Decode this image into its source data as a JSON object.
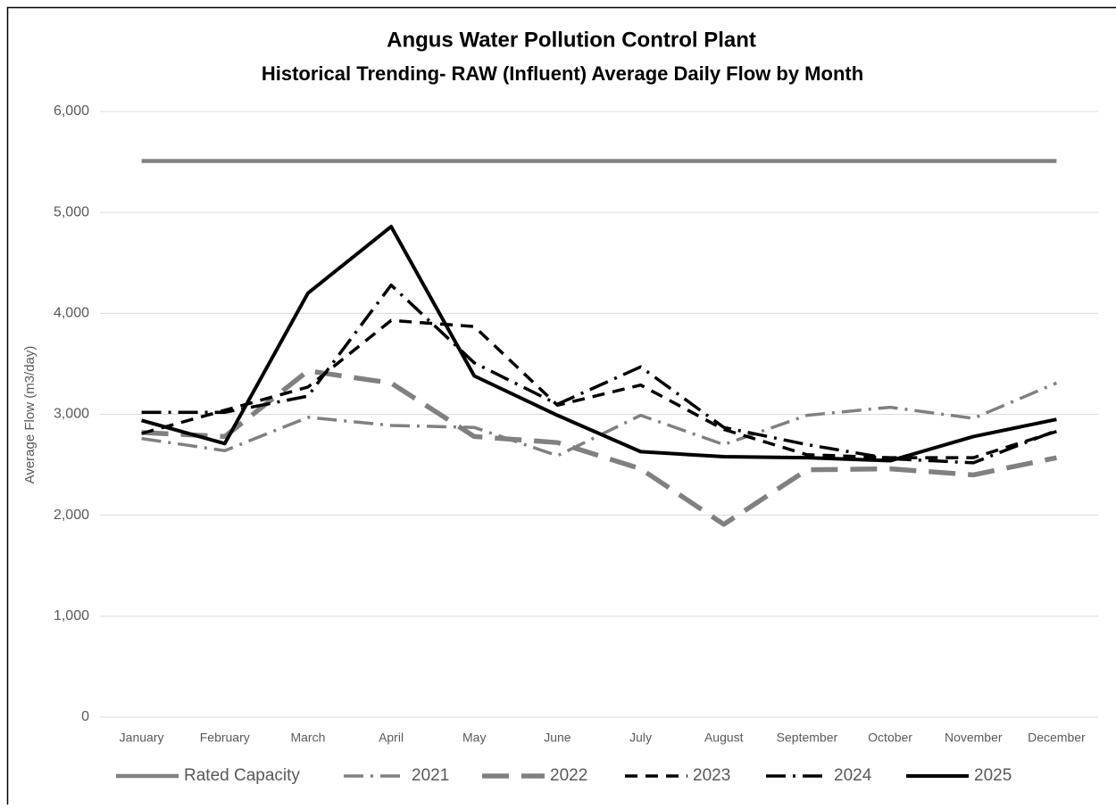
{
  "chart_data": {
    "type": "line",
    "title": "Angus Water Pollution Control Plant",
    "subtitle": "Historical Trending- RAW (Influent) Average Daily Flow by Month",
    "y_label": "Average Flow (m3/day)",
    "categories": [
      "January",
      "February",
      "March",
      "April",
      "May",
      "June",
      "July",
      "August",
      "September",
      "October",
      "November",
      "December"
    ],
    "ylim": [
      0,
      6000
    ],
    "yticks": [
      0,
      {
        "value": 1000,
        "label": "1,000"
      },
      {
        "value": 2000,
        "label": "2,000"
      },
      {
        "value": 3000,
        "label": "3,000"
      },
      {
        "value": 4000,
        "label": "4,000"
      },
      {
        "value": 5000,
        "label": "5,000"
      },
      {
        "value": 6000,
        "label": "6,000"
      }
    ],
    "grid": true,
    "legend": "bottom",
    "series": [
      {
        "name": "Rated Capacity",
        "color": "#808080",
        "style": "solid",
        "values": [
          5510,
          5510,
          5510,
          5510,
          5510,
          5510,
          5510,
          5510,
          5510,
          5510,
          5510,
          5510
        ]
      },
      {
        "name": "2021",
        "color": "#808080",
        "style": "long-dash-dot",
        "values": [
          2760,
          2640,
          2970,
          2890,
          2870,
          2590,
          2990,
          2700,
          2990,
          3070,
          2960,
          3310
        ]
      },
      {
        "name": "2022",
        "color": "#808080",
        "style": "long-dash-thick",
        "values": [
          2820,
          2780,
          3430,
          3310,
          2780,
          2720,
          2460,
          1910,
          2450,
          2460,
          2400,
          2570
        ]
      },
      {
        "name": "2023",
        "color": "#000000",
        "style": "dash",
        "values": [
          2810,
          3040,
          3270,
          3930,
          3870,
          3090,
          3290,
          2850,
          2600,
          2570,
          2570,
          2830
        ]
      },
      {
        "name": "2024",
        "color": "#000000",
        "style": "long-dash-dot",
        "values": [
          3020,
          3020,
          3180,
          4280,
          3510,
          3100,
          3470,
          2870,
          2700,
          2560,
          2520,
          2840
        ]
      },
      {
        "name": "2025",
        "color": "#000000",
        "style": "solid",
        "values": [
          2940,
          2710,
          4200,
          4860,
          3380,
          2990,
          2630,
          2580,
          2570,
          2540,
          2780,
          2950
        ]
      }
    ]
  }
}
